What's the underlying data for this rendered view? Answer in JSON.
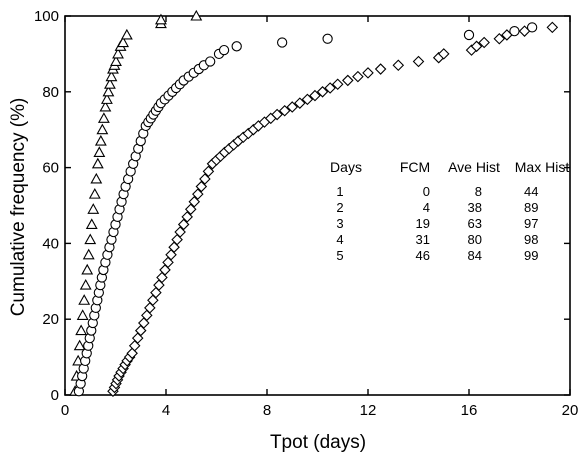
{
  "chart_data": {
    "type": "scatter",
    "xlabel": "Tpot (days)",
    "ylabel": "Cumulative frequency (%)",
    "xlim": [
      0,
      20
    ],
    "ylim": [
      0,
      100
    ],
    "xticks": [
      "0",
      "4",
      "8",
      "12",
      "16",
      "20"
    ],
    "yticks": [
      "0",
      "20",
      "40",
      "60",
      "80",
      "100"
    ],
    "grid": false,
    "series": [
      {
        "marker": "triangle",
        "x": [
          0.4,
          0.46,
          0.52,
          0.58,
          0.64,
          0.7,
          0.76,
          0.82,
          0.88,
          0.94,
          1.0,
          1.06,
          1.12,
          1.18,
          1.24,
          1.3,
          1.36,
          1.42,
          1.48,
          1.54,
          1.6,
          1.66,
          1.72,
          1.78,
          1.84,
          1.9,
          1.96,
          2.02,
          2.1,
          2.2,
          2.3,
          2.45,
          3.8,
          3.8,
          5.2
        ],
        "y": [
          1,
          5,
          9,
          13,
          17,
          21,
          25,
          29,
          33,
          37,
          41,
          45,
          49,
          53,
          57,
          61,
          64,
          67,
          70,
          73,
          76,
          78,
          80,
          82,
          84,
          86,
          87,
          88,
          90,
          92,
          93,
          95,
          98,
          99,
          100
        ]
      },
      {
        "marker": "circle",
        "x": [
          0.55,
          0.62,
          0.68,
          0.74,
          0.8,
          0.86,
          0.92,
          0.98,
          1.04,
          1.1,
          1.16,
          1.22,
          1.28,
          1.34,
          1.4,
          1.46,
          1.52,
          1.6,
          1.68,
          1.76,
          1.84,
          1.92,
          2.0,
          2.08,
          2.16,
          2.24,
          2.32,
          2.4,
          2.5,
          2.6,
          2.7,
          2.8,
          2.9,
          3.0,
          3.1,
          3.2,
          3.3,
          3.4,
          3.5,
          3.6,
          3.7,
          3.8,
          3.95,
          4.1,
          4.25,
          4.4,
          4.55,
          4.7,
          4.9,
          5.1,
          5.3,
          5.5,
          5.75,
          6.1,
          6.3,
          6.8,
          8.6,
          10.4,
          16.0,
          17.8,
          18.5
        ],
        "y": [
          1,
          3,
          5,
          7,
          9,
          11,
          13,
          15,
          17,
          19,
          21,
          23,
          25,
          27,
          29,
          31,
          33,
          35,
          37,
          39,
          41,
          43,
          45,
          47,
          49,
          51,
          53,
          55,
          57,
          59,
          61,
          63,
          65,
          67,
          69,
          71,
          72,
          73,
          74,
          75,
          76,
          77,
          78,
          79,
          80,
          81,
          82,
          83,
          84,
          85,
          86,
          87,
          88,
          90,
          91,
          92,
          93,
          94,
          95,
          96,
          97
        ]
      },
      {
        "marker": "diamond",
        "x": [
          1.9,
          1.96,
          2.02,
          2.08,
          2.14,
          2.22,
          2.3,
          2.38,
          2.46,
          2.56,
          2.66,
          2.76,
          2.88,
          3.0,
          3.12,
          3.24,
          3.36,
          3.48,
          3.6,
          3.72,
          3.84,
          3.96,
          4.08,
          4.2,
          4.32,
          4.44,
          4.56,
          4.7,
          4.84,
          4.98,
          5.12,
          5.26,
          5.4,
          5.54,
          5.68,
          5.84,
          6.0,
          6.16,
          6.32,
          6.5,
          6.68,
          6.86,
          7.06,
          7.26,
          7.46,
          7.66,
          7.9,
          8.15,
          8.4,
          8.7,
          9.0,
          9.3,
          9.6,
          9.9,
          10.2,
          10.5,
          10.8,
          11.2,
          11.6,
          12.0,
          12.5,
          13.2,
          14.0,
          14.8,
          15.0,
          16.1,
          16.3,
          16.6,
          17.2,
          17.5,
          18.2,
          19.3
        ],
        "y": [
          1,
          2,
          3,
          4,
          5,
          6,
          7,
          8,
          9,
          10,
          11,
          13,
          15,
          17,
          19,
          21,
          23,
          25,
          27,
          29,
          31,
          33,
          35,
          37,
          39,
          41,
          43,
          45,
          47,
          49,
          51,
          53,
          55,
          57,
          59,
          61,
          62,
          63,
          64,
          65,
          66,
          67,
          68,
          69,
          70,
          71,
          72,
          73,
          74,
          75,
          76,
          77,
          78,
          79,
          80,
          81,
          82,
          83,
          84,
          85,
          86,
          87,
          88,
          89,
          90,
          91,
          92,
          93,
          94,
          95,
          96,
          97
        ]
      }
    ],
    "table": {
      "position": "center-right",
      "headers": [
        "Days",
        "FCM",
        "Ave Hist",
        "Max Hist"
      ],
      "rows": [
        [
          "1",
          "0",
          "8",
          "44"
        ],
        [
          "2",
          "4",
          "38",
          "89"
        ],
        [
          "3",
          "19",
          "63",
          "97"
        ],
        [
          "4",
          "31",
          "80",
          "98"
        ],
        [
          "5",
          "46",
          "84",
          "99"
        ]
      ]
    }
  }
}
